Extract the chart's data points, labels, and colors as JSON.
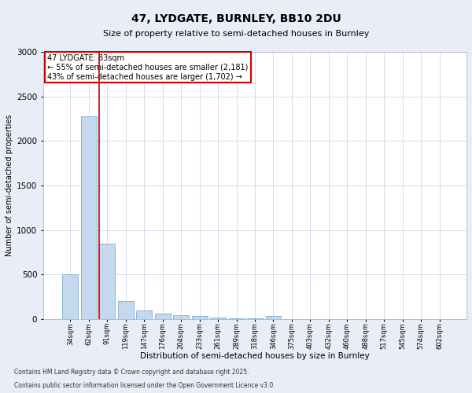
{
  "title1": "47, LYDGATE, BURNLEY, BB10 2DU",
  "title2": "Size of property relative to semi-detached houses in Burnley",
  "xlabel": "Distribution of semi-detached houses by size in Burnley",
  "ylabel": "Number of semi-detached properties",
  "categories": [
    "34sqm",
    "62sqm",
    "91sqm",
    "119sqm",
    "147sqm",
    "176sqm",
    "204sqm",
    "233sqm",
    "261sqm",
    "289sqm",
    "318sqm",
    "346sqm",
    "375sqm",
    "403sqm",
    "432sqm",
    "460sqm",
    "488sqm",
    "517sqm",
    "545sqm",
    "574sqm",
    "602sqm"
  ],
  "values": [
    500,
    2280,
    850,
    200,
    100,
    60,
    45,
    30,
    15,
    10,
    5,
    30,
    0,
    0,
    0,
    0,
    0,
    0,
    0,
    0,
    0
  ],
  "bar_color": "#c5d8ee",
  "bar_edgecolor": "#7aadd4",
  "vline_x_index": 2,
  "vline_color": "#cc0000",
  "annotation_text": "47 LYDGATE: 83sqm\n← 55% of semi-detached houses are smaller (2,181)\n43% of semi-detached houses are larger (1,702) →",
  "annotation_box_edgecolor": "#cc0000",
  "ylim": [
    0,
    3000
  ],
  "yticks": [
    0,
    500,
    1000,
    1500,
    2000,
    2500,
    3000
  ],
  "footnote1": "Contains HM Land Registry data © Crown copyright and database right 2025.",
  "footnote2": "Contains public sector information licensed under the Open Government Licence v3.0.",
  "bg_color": "#e8edf8",
  "plot_bg_color": "#ffffff",
  "grid_color": "#c5cfe0"
}
